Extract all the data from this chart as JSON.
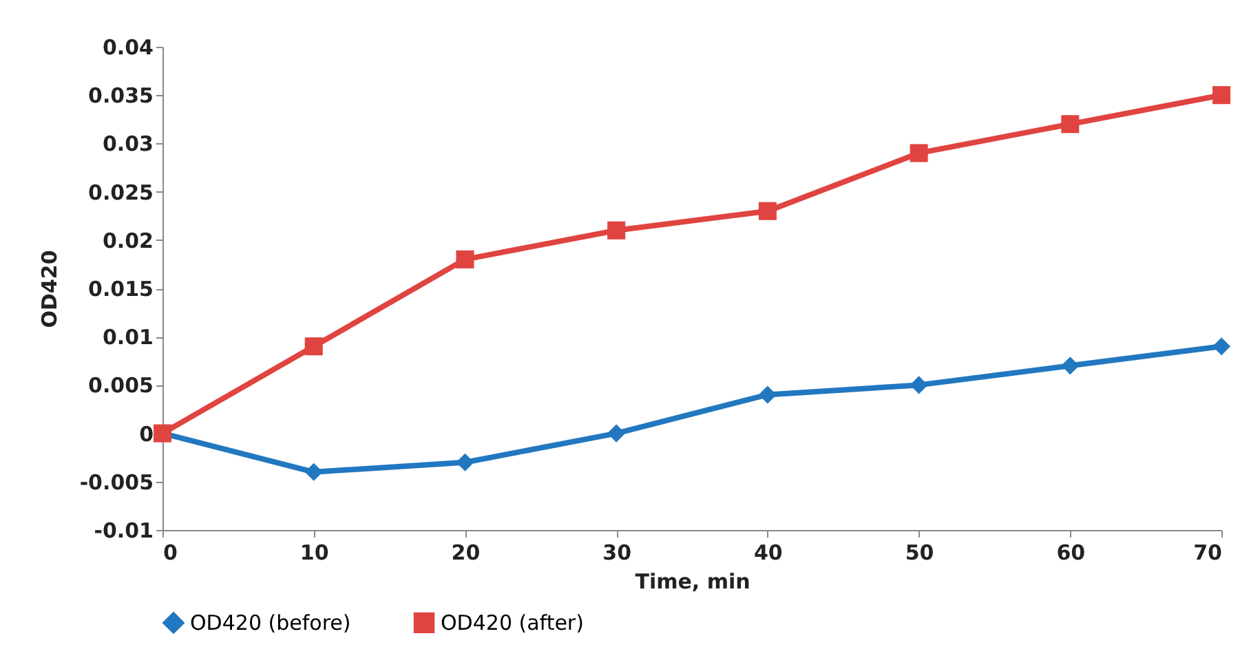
{
  "chart_data": {
    "type": "line",
    "xlabel": "Time, min",
    "ylabel": "OD420",
    "x": [
      0,
      10,
      20,
      30,
      40,
      50,
      60,
      70
    ],
    "series": [
      {
        "name": "OD420 (before)",
        "color": "#2278c0",
        "marker": "diamond",
        "values": [
          0,
          -0.004,
          -0.003,
          0,
          0.004,
          0.005,
          0.007,
          0.009
        ]
      },
      {
        "name": "OD420 (after)",
        "color": "#e04440",
        "marker": "square",
        "values": [
          0,
          0.009,
          0.018,
          0.021,
          0.023,
          0.029,
          0.032,
          0.035
        ]
      }
    ],
    "xlim": [
      0,
      70
    ],
    "xticks": [
      0,
      10,
      20,
      30,
      40,
      50,
      60,
      70
    ],
    "ylim": [
      -0.01,
      0.04
    ],
    "yticks": [
      -0.01,
      -0.005,
      0,
      0.005,
      0.01,
      0.015,
      0.02,
      0.025,
      0.03,
      0.035,
      0.04
    ],
    "grid": false,
    "legend": "bottom",
    "line_style": "solid"
  }
}
